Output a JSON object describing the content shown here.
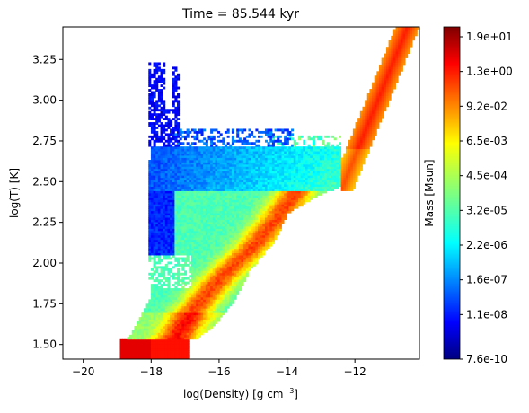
{
  "chart_data": {
    "type": "heatmap",
    "title": "Time = 85.544 kyr",
    "xlabel": {
      "base": "log(Density) [g cm",
      "sup": "−3",
      "tail": "]"
    },
    "ylabel": "log(T) [K]",
    "xlim": [
      -20.6,
      -10.1
    ],
    "ylim": [
      1.41,
      3.45
    ],
    "xticks": [
      {
        "value": -20,
        "label": "−20"
      },
      {
        "value": -18,
        "label": "−18"
      },
      {
        "value": -16,
        "label": "−16"
      },
      {
        "value": -14,
        "label": "−14"
      },
      {
        "value": -12,
        "label": "−12"
      }
    ],
    "yticks": [
      {
        "value": 1.5,
        "label": "1.50"
      },
      {
        "value": 1.75,
        "label": "1.75"
      },
      {
        "value": 2.0,
        "label": "2.00"
      },
      {
        "value": 2.25,
        "label": "2.25"
      },
      {
        "value": 2.5,
        "label": "2.50"
      },
      {
        "value": 2.75,
        "label": "2.75"
      },
      {
        "value": 3.0,
        "label": "3.00"
      },
      {
        "value": 3.25,
        "label": "3.25"
      }
    ],
    "grid": false,
    "colormap": "jet",
    "colorbar": {
      "label": "Mass [Msun]",
      "scale": "log",
      "ticks": [
        "7.6e-10",
        "1.1e-08",
        "1.6e-07",
        "2.2e-06",
        "3.2e-05",
        "4.5e-04",
        "6.5e-03",
        "9.2e-02",
        "1.3e+00",
        "1.9e+01"
      ]
    },
    "regions": [
      {
        "name": "low-density warm spikes",
        "x": [
          -18.1,
          -17.4
        ],
        "y": [
          2.1,
          3.23
        ],
        "level": 0.1
      },
      {
        "name": "main warm band",
        "x": [
          -17.3,
          -12.3
        ],
        "y": [
          2.3,
          2.8
        ],
        "level": 0.32
      },
      {
        "name": "high-density tail",
        "x": [
          -12.5,
          -10.9
        ],
        "y": [
          2.45,
          3.17
        ],
        "level": 0.7
      },
      {
        "name": "central diffuse cloud",
        "x": [
          -18.5,
          -14.0
        ],
        "y": [
          1.55,
          2.5
        ],
        "level": 0.55
      },
      {
        "name": "diagonal dense ridge",
        "x": [
          -17.0,
          -14.0
        ],
        "y": [
          1.55,
          2.45
        ],
        "level": 0.78
      },
      {
        "name": "cold floor",
        "x": [
          -18.8,
          -17.0
        ],
        "y": [
          1.5,
          1.52
        ],
        "level": 0.88
      }
    ]
  }
}
